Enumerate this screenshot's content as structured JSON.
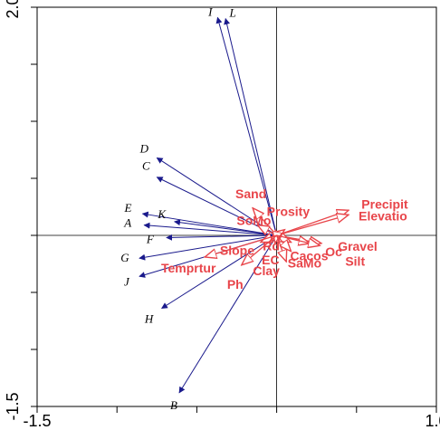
{
  "chart_data": {
    "type": "scatter",
    "title": "",
    "xlabel": "",
    "ylabel": "",
    "xlim": [
      -1.5,
      1.0
    ],
    "ylim": [
      -1.5,
      2.0
    ],
    "x_ticks": [
      {
        "value": -1.5,
        "label": "-1.5"
      },
      {
        "value": 1.0,
        "label": "1.0"
      }
    ],
    "y_ticks": [
      {
        "value": -1.5,
        "label": "-1.5"
      },
      {
        "value": 2.0,
        "label": "2.0"
      }
    ],
    "colors": {
      "site": "#1a1a8c",
      "env": "#e8454a",
      "axis": "#000000"
    },
    "series": [
      {
        "name": "",
        "kind": "site",
        "points": [
          {
            "label": "I",
            "x": -0.37,
            "y": 1.91
          },
          {
            "label": "L",
            "x": -0.32,
            "y": 1.9
          },
          {
            "label": "D",
            "x": -0.75,
            "y": 0.68
          },
          {
            "label": "C",
            "x": -0.75,
            "y": 0.51
          },
          {
            "label": "E",
            "x": -0.84,
            "y": 0.19
          },
          {
            "label": "K",
            "x": -0.64,
            "y": 0.12
          },
          {
            "label": "A",
            "x": -0.83,
            "y": 0.09
          },
          {
            "label": "F",
            "x": -0.69,
            "y": -0.02
          },
          {
            "label": "G",
            "x": -0.86,
            "y": -0.2
          },
          {
            "label": "J",
            "x": -0.86,
            "y": -0.36
          },
          {
            "label": "H",
            "x": -0.72,
            "y": -0.64
          },
          {
            "label": "B",
            "x": -0.61,
            "y": -1.38
          }
        ]
      },
      {
        "name": "",
        "kind": "env",
        "points": [
          {
            "label": "Sand",
            "x": -0.15,
            "y": 0.24
          },
          {
            "label": "SoMo",
            "x": -0.12,
            "y": 0.09
          },
          {
            "label": "Prosity",
            "x": 0.05,
            "y": 0.05
          },
          {
            "label": "Precipit",
            "x": 0.45,
            "y": 0.22
          },
          {
            "label": "Elevatio",
            "x": 0.45,
            "y": 0.18
          },
          {
            "label": "Gravel",
            "x": 0.28,
            "y": -0.07
          },
          {
            "label": "Oc",
            "x": 0.21,
            "y": -0.07
          },
          {
            "label": "Slope",
            "x": -0.1,
            "y": -0.06
          },
          {
            "label": "Rd",
            "x": -0.04,
            "y": -0.05
          },
          {
            "label": "Cacos",
            "x": 0.09,
            "y": -0.06
          },
          {
            "label": "EC",
            "x": -0.01,
            "y": -0.07
          },
          {
            "label": "Temprtur",
            "x": -0.45,
            "y": -0.19
          },
          {
            "label": "Clay",
            "x": 0.06,
            "y": -0.23
          },
          {
            "label": "SaMo",
            "x": 0.09,
            "y": -0.14
          },
          {
            "label": "Silt",
            "x": 0.27,
            "y": -0.09
          },
          {
            "label": "Ph",
            "x": -0.22,
            "y": -0.26
          }
        ]
      }
    ]
  }
}
